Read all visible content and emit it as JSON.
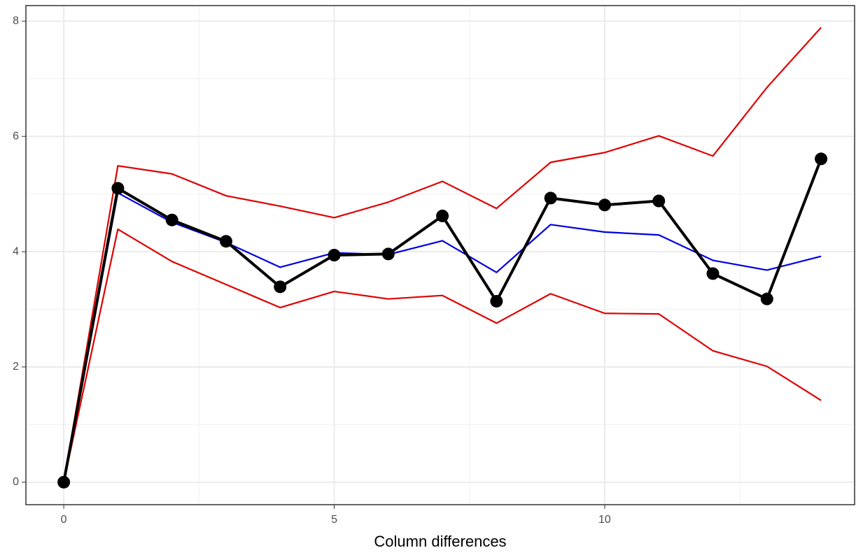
{
  "chart_data": {
    "type": "line",
    "xlabel": "Column differences",
    "x": [
      0,
      1,
      2,
      3,
      4,
      5,
      6,
      7,
      8,
      9,
      10,
      11,
      12,
      13,
      14
    ],
    "series": [
      {
        "color": "#e00000",
        "values": [
          0,
          5.49,
          5.35,
          4.97,
          4.79,
          4.59,
          4.86,
          5.22,
          4.75,
          5.55,
          5.72,
          6.01,
          5.66,
          6.85,
          7.89
        ]
      },
      {
        "color": "#e00000",
        "values": [
          0,
          4.39,
          3.83,
          3.43,
          3.03,
          3.31,
          3.18,
          3.24,
          2.76,
          3.27,
          2.93,
          2.92,
          2.28,
          2.01,
          1.42
        ]
      },
      {
        "color": "#0000e0",
        "values": [
          0,
          5.02,
          4.51,
          4.16,
          3.73,
          3.98,
          3.95,
          4.19,
          3.64,
          4.47,
          4.34,
          4.29,
          3.85,
          3.68,
          3.92
        ]
      },
      {
        "color": "#000000",
        "values": [
          0,
          5.1,
          4.55,
          4.18,
          3.39,
          3.94,
          3.96,
          4.62,
          3.14,
          4.93,
          4.81,
          4.88,
          3.62,
          3.18,
          5.61
        ],
        "markers": true
      }
    ],
    "xlim": [
      -0.7,
      14.62
    ],
    "ylim": [
      -0.39,
      8.27
    ],
    "xticks": [
      0,
      5,
      10
    ],
    "yticks": [
      0,
      2,
      4,
      6,
      8
    ],
    "xminor": [
      2.5,
      7.5,
      12.5
    ],
    "yminor": [
      1,
      3,
      5,
      7
    ],
    "grid": true
  }
}
